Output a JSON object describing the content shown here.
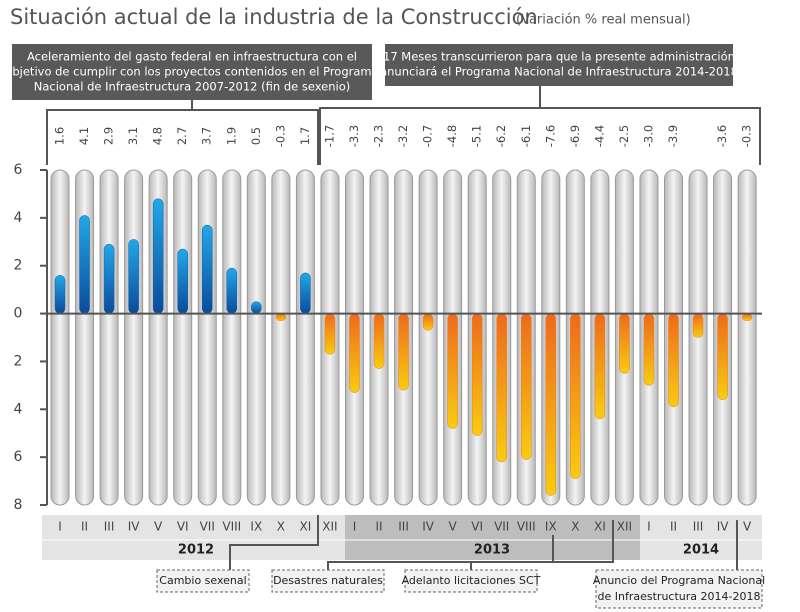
{
  "chart_data": {
    "type": "bar",
    "title": "Situación actual de la industria de la Construcción",
    "subtitle": "(Variación % real mensual)",
    "categories": [
      "I",
      "II",
      "III",
      "IV",
      "V",
      "VI",
      "VII",
      "VIII",
      "IX",
      "X",
      "XI",
      "XII",
      "I",
      "II",
      "III",
      "IV",
      "V",
      "VI",
      "VII",
      "VIII",
      "IX",
      "X",
      "XI",
      "XII",
      "I",
      "II",
      "III",
      "IV",
      "V"
    ],
    "years": [
      "2012",
      "2013",
      "2014"
    ],
    "values": [
      1.6,
      4.1,
      2.9,
      3.1,
      4.8,
      2.7,
      3.7,
      1.9,
      0.5,
      -0.3,
      1.7,
      -1.7,
      -3.3,
      -2.3,
      -3.2,
      -0.7,
      -4.8,
      -5.1,
      -6.2,
      -6.1,
      -7.6,
      -6.9,
      -4.4,
      -2.5,
      -3.0,
      -3.9,
      -1.0,
      -3.6,
      -0.3
    ],
    "value_labels": [
      "1.6",
      "4.1",
      "2.9",
      "3.1",
      "4.8",
      "2.7",
      "3.7",
      "1.9",
      "0.5",
      "-0.3",
      "1.7",
      "-1.7",
      "-3.3",
      "-2.3",
      "-3.2",
      "-0.7",
      "-4.8",
      "-5.1",
      "-6.2",
      "-6.1",
      "-7.6",
      "-6.9",
      "-4.4",
      "-2.5",
      "-3.0",
      "-3.9",
      null,
      "-3.6",
      "-0.3"
    ],
    "positive_color": "#0b5fb0",
    "negative_color": "#f07a1e",
    "ylim": [
      -8,
      6
    ],
    "yticks": [
      {
        "value": -8,
        "label": "8"
      },
      {
        "value": -6,
        "label": "6"
      },
      {
        "value": -4,
        "label": "4"
      },
      {
        "value": -2,
        "label": "2"
      },
      0,
      2,
      4,
      6
    ],
    "top_annotations": [
      {
        "lines": [
          "Aceleramiento del gasto federal en infraestructura con el",
          "objetivo de cumplir con los proyectos contenidos en el Programa",
          "Nacional de Infraestructura 2007-2012 (fin de sexenio)"
        ]
      },
      {
        "lines": [
          "17 Meses transcurrieron para que la presente administración",
          "anunciará el Programa Nacional de Infraestructura 2014-2018"
        ]
      }
    ],
    "bottom_annotations": [
      {
        "lines": [
          "Cambio sexenal"
        ]
      },
      {
        "lines": [
          "Desastres naturales"
        ]
      },
      {
        "lines": [
          "Adelanto licitaciones SCT"
        ]
      },
      {
        "lines": [
          "Anuncio del Programa Nacional",
          "de Infraestructura 2014-2018"
        ]
      }
    ]
  }
}
